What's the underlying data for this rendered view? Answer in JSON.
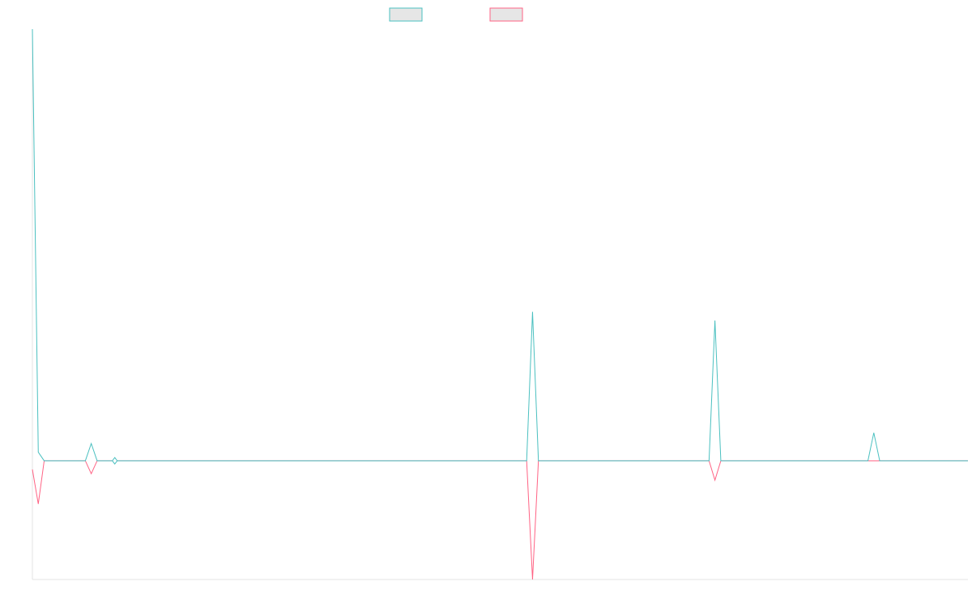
{
  "chart_data": {
    "type": "line",
    "title": "",
    "xlabel": "",
    "ylabel": "",
    "grid": false,
    "legend_position": "top-center",
    "series": [
      {
        "label_shown": "",
        "color": "#4bc0c0",
        "values": [
          20,
          0.4,
          0,
          0,
          0,
          0,
          0,
          0,
          0,
          0,
          0.8,
          0,
          0,
          0,
          0,
          0,
          0,
          0,
          0,
          0,
          0,
          0,
          0,
          0,
          0,
          0,
          0,
          0,
          0,
          0,
          0,
          0,
          0,
          0,
          0,
          0,
          0,
          0,
          0,
          0,
          0,
          0,
          0,
          0,
          0,
          0,
          0,
          0,
          0,
          0,
          0,
          0,
          0,
          0,
          0,
          0,
          0,
          0,
          0,
          0,
          0,
          0,
          0,
          0,
          0,
          0,
          0,
          0,
          0,
          0,
          0,
          0,
          0,
          0,
          0,
          0,
          0,
          0,
          0,
          0,
          0,
          0,
          0,
          0,
          0,
          6.9,
          0,
          0,
          0,
          0,
          0,
          0,
          0,
          0,
          0,
          0,
          0,
          0,
          0,
          0,
          0,
          0,
          0,
          0,
          0,
          0,
          0,
          0,
          0,
          0,
          0,
          0,
          0,
          0,
          0,
          0,
          6.5,
          0,
          0,
          0,
          0,
          0,
          0,
          0,
          0,
          0,
          0,
          0,
          0,
          0,
          0,
          0,
          0,
          0,
          0,
          0,
          0,
          0,
          0,
          0,
          0,
          0,
          0,
          1.3,
          0,
          0,
          0,
          0,
          0,
          0,
          0,
          0,
          0,
          0,
          0,
          0,
          0,
          0,
          0,
          0
        ]
      },
      {
        "label_shown": "",
        "color": "#ff6384",
        "values": [
          -0.4,
          -2,
          0,
          0,
          0,
          0,
          0,
          0,
          0,
          0,
          -0.6,
          0,
          0,
          0,
          0,
          0,
          0,
          0,
          0,
          0,
          0,
          0,
          0,
          0,
          0,
          0,
          0,
          0,
          0,
          0,
          0,
          0,
          0,
          0,
          0,
          0,
          0,
          0,
          0,
          0,
          0,
          0,
          0,
          0,
          0,
          0,
          0,
          0,
          0,
          0,
          0,
          0,
          0,
          0,
          0,
          0,
          0,
          0,
          0,
          0,
          0,
          0,
          0,
          0,
          0,
          0,
          0,
          0,
          0,
          0,
          0,
          0,
          0,
          0,
          0,
          0,
          0,
          0,
          0,
          0,
          0,
          0,
          0,
          0,
          0,
          -5.5,
          0,
          0,
          0,
          0,
          0,
          0,
          0,
          0,
          0,
          0,
          0,
          0,
          0,
          0,
          0,
          0,
          0,
          0,
          0,
          0,
          0,
          0,
          0,
          0,
          0,
          0,
          0,
          0,
          0,
          0,
          -0.9,
          0,
          0,
          0,
          0,
          0,
          0,
          0,
          0,
          0,
          0,
          0,
          0,
          0,
          0,
          0,
          0,
          0,
          0,
          0,
          0,
          0,
          0,
          0,
          0,
          0,
          0,
          0,
          0,
          0,
          0,
          0,
          0,
          0,
          0,
          0,
          0,
          0,
          0,
          0,
          0,
          0,
          0,
          0
        ]
      }
    ],
    "x_count": 160,
    "ylim": [
      -5.5,
      20
    ]
  }
}
